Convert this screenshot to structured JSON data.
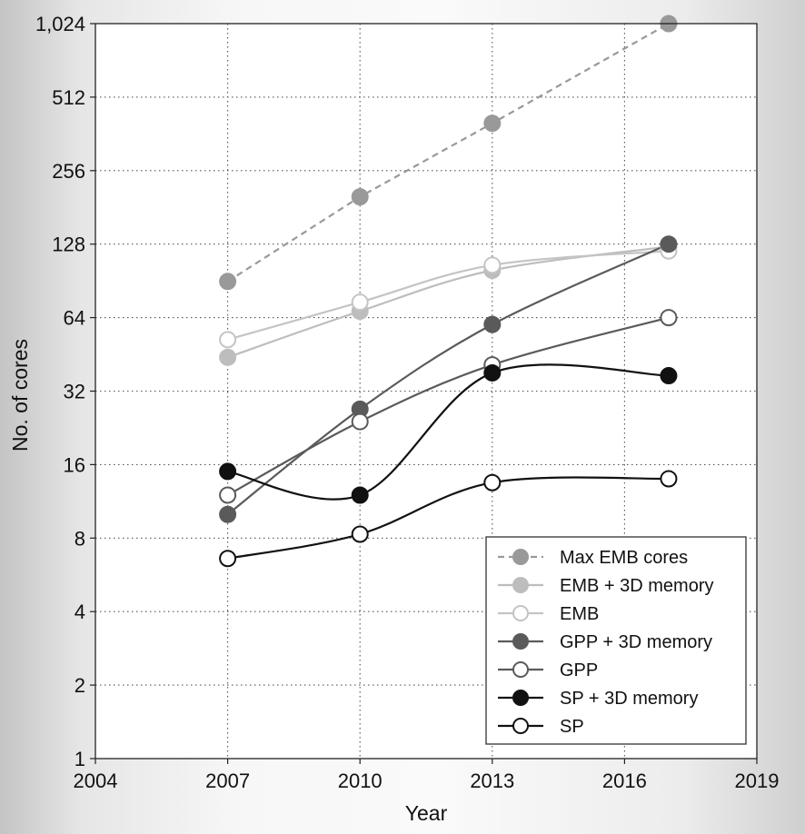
{
  "chart_data": {
    "type": "line",
    "xlabel": "Year",
    "ylabel": "No. of cores",
    "y_scale": "log2",
    "xlim": [
      2004,
      2019
    ],
    "ylim": [
      1,
      1024
    ],
    "x_ticks": [
      2004,
      2007,
      2010,
      2013,
      2016,
      2019
    ],
    "y_ticks": [
      1,
      2,
      4,
      8,
      16,
      32,
      64,
      128,
      256,
      512,
      1024
    ],
    "y_tick_labels": [
      "1",
      "2",
      "4",
      "8",
      "16",
      "32",
      "64",
      "128",
      "256",
      "512",
      "1,024"
    ],
    "grid": true,
    "legend_position": "bottom-right",
    "series": [
      {
        "name": "Max EMB cores",
        "x": [
          2007,
          2010,
          2013,
          2017
        ],
        "values": [
          90,
          200,
          400,
          1024
        ],
        "color": "#999999",
        "marker": "filled",
        "dashed": true
      },
      {
        "name": "EMB + 3D memory",
        "x": [
          2007,
          2010,
          2013,
          2017
        ],
        "values": [
          44,
          68,
          100,
          125
        ],
        "color": "#bdbdbd",
        "marker": "filled",
        "dashed": false
      },
      {
        "name": "EMB",
        "x": [
          2007,
          2010,
          2013,
          2017
        ],
        "values": [
          52,
          74,
          105,
          120
        ],
        "color": "#c4c4c4",
        "marker": "open",
        "dashed": false
      },
      {
        "name": "GPP + 3D memory",
        "x": [
          2007,
          2010,
          2013,
          2017
        ],
        "values": [
          10,
          27,
          60,
          128
        ],
        "color": "#5a5a5a",
        "marker": "filled",
        "dashed": false
      },
      {
        "name": "GPP",
        "x": [
          2007,
          2010,
          2013,
          2017
        ],
        "values": [
          12,
          24,
          41,
          64
        ],
        "color": "#5a5a5a",
        "marker": "open",
        "dashed": false
      },
      {
        "name": "SP + 3D memory",
        "x": [
          2007,
          2010,
          2013,
          2017
        ],
        "values": [
          15,
          12,
          38,
          37
        ],
        "color": "#111111",
        "marker": "filled",
        "dashed": false
      },
      {
        "name": "SP",
        "x": [
          2007,
          2010,
          2013,
          2017
        ],
        "values": [
          6.6,
          8.3,
          13.5,
          14
        ],
        "color": "#111111",
        "marker": "open",
        "dashed": false
      }
    ]
  }
}
